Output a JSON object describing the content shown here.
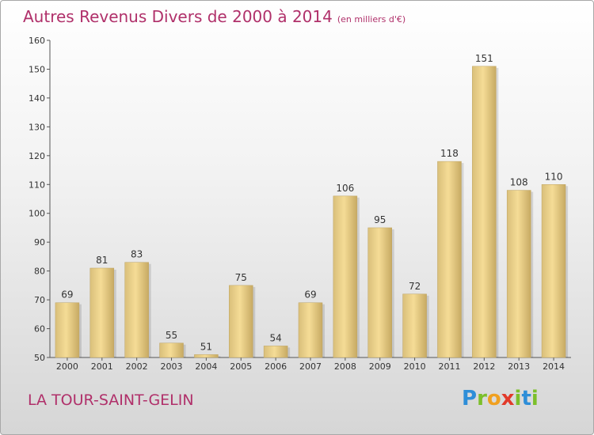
{
  "title": "Autres Revenus Divers de 2000 à 2014",
  "subtitle": "(en milliers d'€)",
  "town": "LA TOUR-SAINT-GELIN",
  "brand": "Proxiti",
  "colors": {
    "title": "#b0306a",
    "bar_light": "#f5dc96",
    "bar_dark": "#c7aa63"
  },
  "chart_data": {
    "type": "bar",
    "categories": [
      "2000",
      "2001",
      "2002",
      "2003",
      "2004",
      "2005",
      "2006",
      "2007",
      "2008",
      "2009",
      "2010",
      "2011",
      "2012",
      "2013",
      "2014"
    ],
    "values": [
      69,
      81,
      83,
      55,
      51,
      75,
      54,
      69,
      106,
      95,
      72,
      118,
      151,
      108,
      110
    ],
    "ylim": [
      50,
      160
    ],
    "yticks": [
      50,
      60,
      70,
      80,
      90,
      100,
      110,
      120,
      130,
      140,
      150,
      160
    ],
    "grid": false,
    "xlabel": "",
    "ylabel": ""
  }
}
